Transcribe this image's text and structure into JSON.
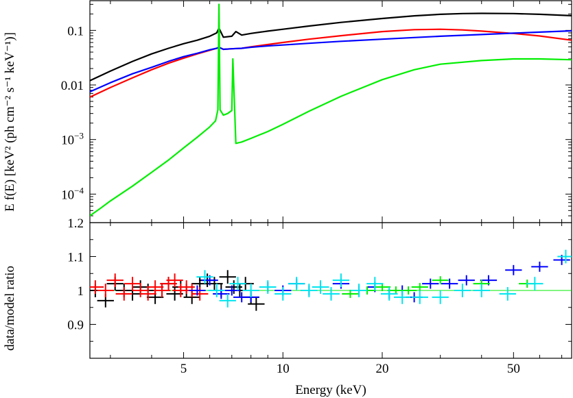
{
  "chart_data": [
    {
      "type": "line",
      "panel": "spectrum",
      "ylabel": "E f(E) [keV² (ph cm⁻² s⁻¹ keV⁻¹)]",
      "xscale": "log",
      "yscale": "log",
      "xlim": [
        2.6,
        75
      ],
      "ylim": [
        3e-05,
        0.35
      ],
      "yticks": [
        {
          "value": 0.0001,
          "label": "10",
          "sup": "−4"
        },
        {
          "value": 0.001,
          "label": "10",
          "sup": "−3"
        },
        {
          "value": 0.01,
          "label": "0.01",
          "sup": ""
        },
        {
          "value": 0.1,
          "label": "0.1",
          "sup": ""
        }
      ],
      "series": [
        {
          "color": "#000000",
          "x": [
            2.6,
            3,
            3.5,
            4,
            4.5,
            5,
            5.5,
            6,
            6.3,
            6.4,
            6.6,
            7,
            7.2,
            7.5,
            8,
            9,
            10,
            12,
            15,
            20,
            25,
            30,
            35,
            40,
            50,
            60,
            75
          ],
          "y": [
            0.012,
            0.018,
            0.027,
            0.037,
            0.047,
            0.057,
            0.066,
            0.078,
            0.09,
            0.11,
            0.075,
            0.078,
            0.095,
            0.082,
            0.088,
            0.097,
            0.105,
            0.12,
            0.14,
            0.165,
            0.185,
            0.197,
            0.203,
            0.205,
            0.203,
            0.197,
            0.186
          ]
        },
        {
          "color": "#ff0000",
          "x": [
            2.6,
            3,
            3.5,
            4,
            4.5,
            5,
            5.5,
            6,
            6.3,
            6.4,
            6.6,
            7,
            7.5,
            8,
            9,
            10,
            12,
            15,
            20,
            25,
            30,
            35,
            40,
            50,
            60,
            75
          ],
          "y": [
            0.006,
            0.009,
            0.0135,
            0.019,
            0.025,
            0.031,
            0.037,
            0.043,
            0.047,
            0.049,
            0.045,
            0.046,
            0.047,
            0.05,
            0.055,
            0.06,
            0.069,
            0.08,
            0.095,
            0.103,
            0.105,
            0.102,
            0.097,
            0.088,
            0.079,
            0.066
          ]
        },
        {
          "color": "#0000ff",
          "x": [
            2.6,
            3,
            3.5,
            4,
            4.5,
            5,
            5.5,
            6,
            6.3,
            6.4,
            6.6,
            7,
            7.5,
            8,
            9,
            10,
            12,
            15,
            20,
            25,
            30,
            40,
            50,
            60,
            75
          ],
          "y": [
            0.0075,
            0.011,
            0.016,
            0.021,
            0.027,
            0.033,
            0.038,
            0.044,
            0.047,
            0.049,
            0.045,
            0.046,
            0.047,
            0.049,
            0.052,
            0.054,
            0.058,
            0.063,
            0.069,
            0.074,
            0.078,
            0.084,
            0.089,
            0.093,
            0.098
          ]
        },
        {
          "color": "#00ee00",
          "x": [
            2.6,
            2.8,
            3,
            3.5,
            4,
            4.5,
            5,
            5.5,
            6,
            6.25,
            6.35,
            6.4,
            6.45,
            6.6,
            6.8,
            7.0,
            7.05,
            7.2,
            7.5,
            8,
            9,
            10,
            12,
            15,
            20,
            25,
            30,
            40,
            50,
            60,
            75
          ],
          "y": [
            4e-05,
            5.5e-05,
            7.5e-05,
            0.00014,
            0.00025,
            0.00042,
            0.0007,
            0.0011,
            0.0017,
            0.0022,
            0.0035,
            0.3,
            0.0035,
            0.0028,
            0.003,
            0.0034,
            0.03,
            0.00085,
            0.0009,
            0.00105,
            0.0014,
            0.0019,
            0.0033,
            0.0062,
            0.0125,
            0.019,
            0.024,
            0.028,
            0.03,
            0.03,
            0.029
          ]
        }
      ]
    },
    {
      "type": "scatter",
      "panel": "ratio",
      "xlabel": "Energy (keV)",
      "ylabel": "data/model ratio",
      "xscale": "log",
      "xlim": [
        2.6,
        75
      ],
      "ylim": [
        0.8,
        1.2
      ],
      "xticks": [
        5,
        10,
        20,
        50
      ],
      "yticks": [
        0.9,
        1,
        1.1,
        1.2
      ],
      "reference_line": {
        "y": 1,
        "color": "#00ee00"
      },
      "series": [
        {
          "color": "#000000",
          "x": [
            2.7,
            2.9,
            3.1,
            3.3,
            3.5,
            3.7,
            3.9,
            4.1,
            4.3,
            4.5,
            4.7,
            4.9,
            5.1,
            5.3,
            5.6,
            5.9,
            6.2,
            6.5,
            6.8,
            7.1,
            7.4,
            7.7,
            8.0,
            8.3
          ],
          "y": [
            1.0,
            0.97,
            1.02,
            1.0,
            0.99,
            1.01,
            1.0,
            0.98,
            1.0,
            1.02,
            0.99,
            1.01,
            1.0,
            0.98,
            1.02,
            1.03,
            1.02,
            1.0,
            1.04,
            1.01,
            1.0,
            1.02,
            0.98,
            0.96
          ],
          "yerr": 0.02
        },
        {
          "color": "#ff0000",
          "x": [
            2.7,
            2.9,
            3.1,
            3.3,
            3.5,
            3.7,
            3.9,
            4.1,
            4.3,
            4.5,
            4.7,
            4.9,
            5.1,
            5.3,
            5.6
          ],
          "y": [
            1.01,
            1.0,
            1.03,
            0.99,
            1.02,
            1.0,
            0.99,
            1.01,
            1.0,
            1.02,
            1.03,
            1.0,
            1.01,
            1.0,
            0.99
          ],
          "yerr": 0.02
        },
        {
          "color": "#0000ff",
          "x": [
            5.5,
            6,
            6.5,
            7,
            7.5,
            8,
            9,
            10,
            11,
            12,
            13,
            14,
            15,
            17,
            19,
            21,
            23,
            25,
            28,
            32,
            36,
            42,
            50,
            60,
            70
          ],
          "y": [
            1.0,
            1.03,
            0.99,
            1.0,
            0.98,
            0.98,
            1.01,
            1.0,
            1.02,
            1.0,
            1.01,
            0.99,
            1.02,
            1.0,
            1.01,
            0.99,
            1.0,
            0.98,
            1.02,
            1.02,
            1.03,
            1.03,
            1.06,
            1.07,
            1.09
          ],
          "yerr": 0.015
        },
        {
          "color": "#00ee00",
          "x": [
            16,
            18,
            20,
            22,
            24,
            26,
            30,
            40,
            55
          ],
          "y": [
            0.99,
            1.0,
            1.01,
            1.0,
            1.0,
            1.01,
            1.03,
            1.02,
            1.02
          ],
          "yerr": 0.012
        },
        {
          "color": "#00e5ee",
          "x": [
            5.8,
            6.3,
            6.8,
            7.3,
            8,
            9,
            10,
            11,
            12,
            13,
            14,
            15,
            17,
            19,
            21,
            23,
            26,
            30,
            35,
            40,
            48,
            58,
            72
          ],
          "y": [
            1.04,
            1.0,
            0.97,
            1.02,
            1.0,
            1.01,
            0.99,
            1.02,
            1.0,
            1.01,
            0.99,
            1.03,
            1.0,
            1.02,
            0.99,
            0.98,
            0.98,
            0.98,
            1.0,
            1.0,
            0.99,
            1.02,
            1.1
          ],
          "yerr": 0.02
        }
      ]
    }
  ]
}
